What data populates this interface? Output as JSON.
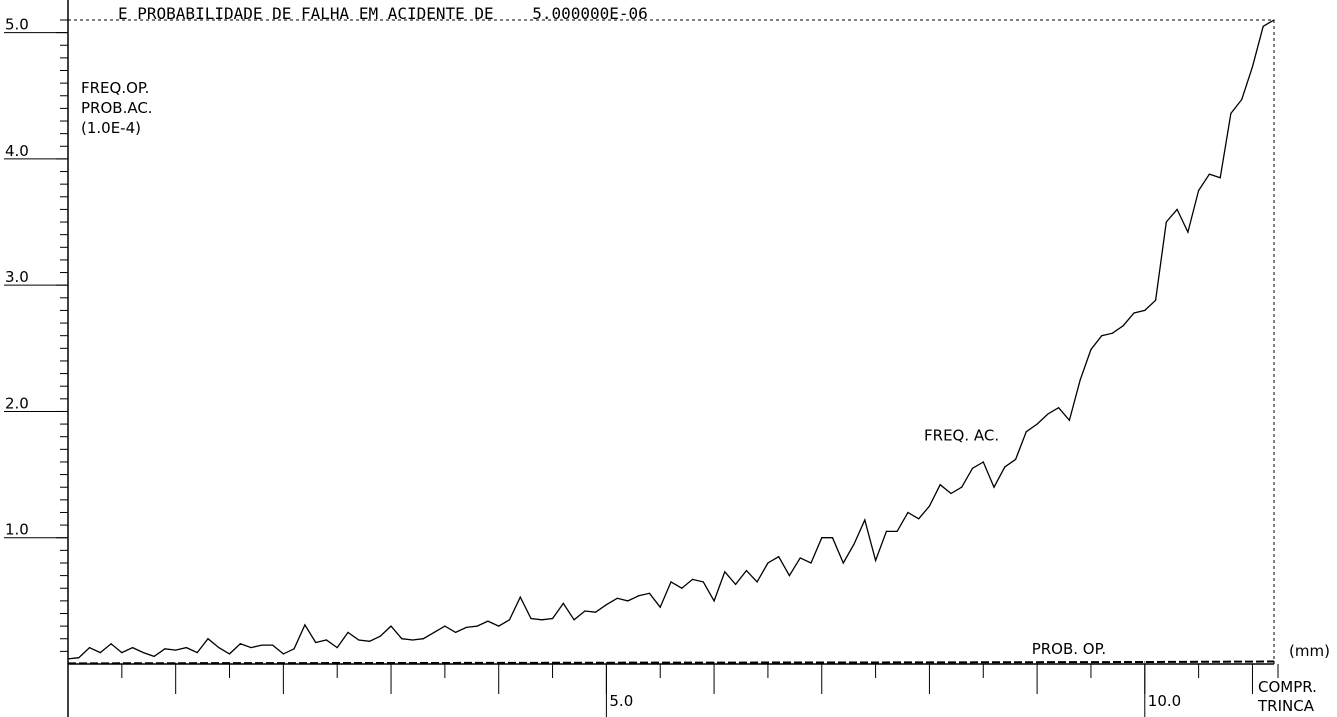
{
  "chart_data": {
    "type": "line",
    "title": "E PROBABILIDADE DE FALHA EM ACIDENTE DE    5.000000E-06",
    "ylabel_lines": [
      "FREQ.OP.",
      "PROB.AC.",
      "(1.0E-4)"
    ],
    "xlabel_unit": "(mm)",
    "xlabel_lines": [
      "COMPR.",
      "TRINCA"
    ],
    "xlim": [
      0.0,
      11.2
    ],
    "ylim": [
      0.0,
      5.1
    ],
    "x_ticks": [
      {
        "value": 5.0,
        "label": "5.0"
      },
      {
        "value": 10.0,
        "label": "10.0"
      }
    ],
    "y_ticks": [
      {
        "value": 1.0,
        "label": "1.0"
      },
      {
        "value": 2.0,
        "label": "2.0"
      },
      {
        "value": 3.0,
        "label": "3.0"
      },
      {
        "value": 4.0,
        "label": "4.0"
      },
      {
        "value": 5.0,
        "label": "5.0"
      }
    ],
    "grid": false,
    "series": [
      {
        "name": "FREQ. AC.",
        "line_style": "solid",
        "x": [
          0.0,
          0.1,
          0.2,
          0.3,
          0.4,
          0.5,
          0.6,
          0.7,
          0.8,
          0.9,
          1.0,
          1.1,
          1.2,
          1.3,
          1.4,
          1.5,
          1.6,
          1.7,
          1.8,
          1.9,
          2.0,
          2.1,
          2.2,
          2.3,
          2.4,
          2.5,
          2.6,
          2.7,
          2.8,
          2.9,
          3.0,
          3.1,
          3.2,
          3.3,
          3.4,
          3.5,
          3.6,
          3.7,
          3.8,
          3.9,
          4.0,
          4.1,
          4.2,
          4.3,
          4.4,
          4.5,
          4.6,
          4.7,
          4.8,
          4.9,
          5.0,
          5.1,
          5.2,
          5.3,
          5.4,
          5.5,
          5.6,
          5.7,
          5.8,
          5.9,
          6.0,
          6.1,
          6.2,
          6.3,
          6.4,
          6.5,
          6.6,
          6.7,
          6.8,
          6.9,
          7.0,
          7.1,
          7.2,
          7.3,
          7.4,
          7.5,
          7.6,
          7.7,
          7.8,
          7.9,
          8.0,
          8.1,
          8.2,
          8.3,
          8.4,
          8.5,
          8.6,
          8.7,
          8.8,
          8.9,
          9.0,
          9.1,
          9.2,
          9.3,
          9.4,
          9.5,
          9.6,
          9.7,
          9.8,
          9.9,
          10.0,
          10.1,
          10.2,
          10.3,
          10.4,
          10.5,
          10.6,
          10.7,
          10.8,
          10.9,
          11.0,
          11.1,
          11.2
        ],
        "values": [
          0.04,
          0.05,
          0.13,
          0.09,
          0.16,
          0.09,
          0.13,
          0.09,
          0.06,
          0.12,
          0.11,
          0.13,
          0.09,
          0.2,
          0.13,
          0.08,
          0.16,
          0.13,
          0.15,
          0.15,
          0.08,
          0.12,
          0.31,
          0.17,
          0.19,
          0.13,
          0.25,
          0.19,
          0.18,
          0.22,
          0.3,
          0.2,
          0.19,
          0.2,
          0.25,
          0.3,
          0.25,
          0.29,
          0.3,
          0.34,
          0.3,
          0.35,
          0.53,
          0.36,
          0.35,
          0.36,
          0.48,
          0.35,
          0.42,
          0.41,
          0.47,
          0.52,
          0.5,
          0.54,
          0.56,
          0.45,
          0.65,
          0.6,
          0.67,
          0.65,
          0.5,
          0.73,
          0.63,
          0.74,
          0.65,
          0.8,
          0.85,
          0.7,
          0.84,
          0.8,
          1.0,
          1.0,
          0.8,
          0.95,
          1.14,
          0.82,
          1.05,
          1.05,
          1.2,
          1.15,
          1.25,
          1.42,
          1.35,
          1.4,
          1.55,
          1.6,
          1.4,
          1.56,
          1.62,
          1.84,
          1.9,
          1.98,
          2.03,
          1.93,
          2.25,
          2.49,
          2.6,
          2.62,
          2.68,
          2.78,
          2.8,
          2.88,
          3.5,
          3.6,
          3.42,
          3.75,
          3.88,
          3.85,
          4.36,
          4.47,
          4.73,
          5.05,
          5.1
        ]
      },
      {
        "name": "PROB. OP.",
        "line_style": "dashed",
        "x": [
          0.0,
          1.0,
          2.0,
          3.0,
          4.0,
          5.0,
          6.0,
          7.0,
          8.0,
          9.0,
          10.0,
          11.2
        ],
        "values": [
          0.005,
          0.006,
          0.007,
          0.008,
          0.009,
          0.01,
          0.011,
          0.012,
          0.013,
          0.014,
          0.016,
          0.02
        ]
      }
    ]
  }
}
